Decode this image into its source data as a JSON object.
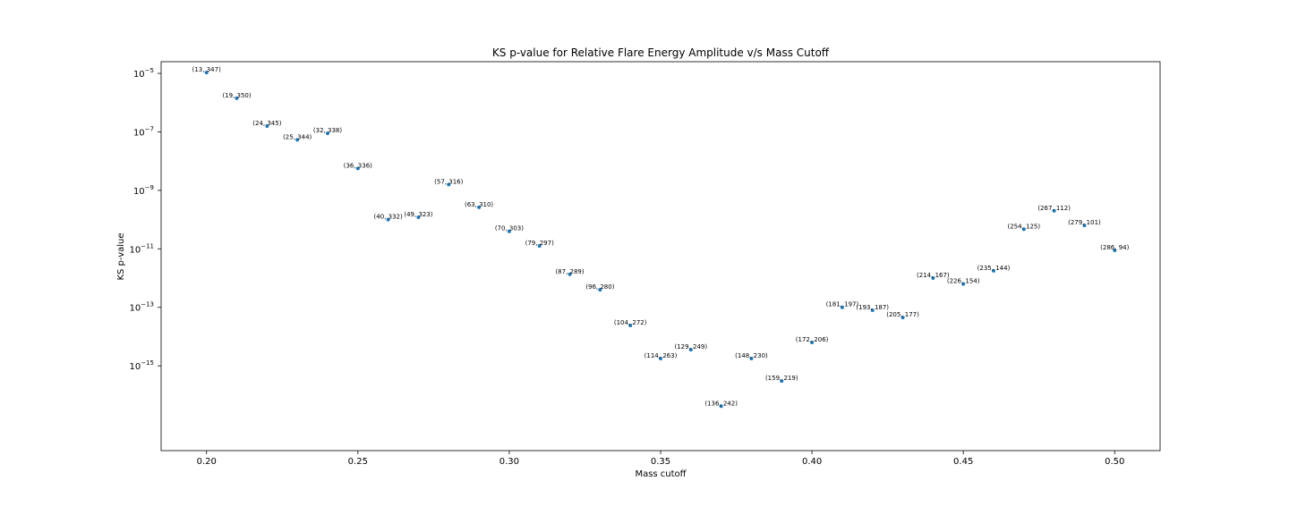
{
  "chart_data": {
    "type": "scatter",
    "title": "KS p-value for Relative Flare Energy Amplitude v/s Mass Cutoff",
    "xlabel": "Mass cutoff",
    "ylabel": "KS p-value",
    "y_scale": "log",
    "xlim": [
      0.185,
      0.515
    ],
    "ylim_log10": [
      -17.9,
      -4.6
    ],
    "grid": false,
    "color": "#1f77b4",
    "x_ticks": [
      "0.20",
      "0.25",
      "0.30",
      "0.35",
      "0.40",
      "0.45",
      "0.50"
    ],
    "y_ticks": [
      {
        "base": "10",
        "exp": "−5",
        "log10": -5
      },
      {
        "base": "10",
        "exp": "−7",
        "log10": -7
      },
      {
        "base": "10",
        "exp": "−9",
        "log10": -9
      },
      {
        "base": "10",
        "exp": "−11",
        "log10": -11
      },
      {
        "base": "10",
        "exp": "−13",
        "log10": -13
      },
      {
        "base": "10",
        "exp": "−15",
        "log10": -15
      }
    ],
    "points": [
      {
        "x": 0.2,
        "log10_y": -4.97,
        "label": "(13, 347)"
      },
      {
        "x": 0.21,
        "log10_y": -5.85,
        "label": "(19, 350)"
      },
      {
        "x": 0.22,
        "log10_y": -6.8,
        "label": "(24, 345)"
      },
      {
        "x": 0.23,
        "log10_y": -7.27,
        "label": "(25, 344)"
      },
      {
        "x": 0.24,
        "log10_y": -7.05,
        "label": "(32, 338)"
      },
      {
        "x": 0.25,
        "log10_y": -8.25,
        "label": "(36, 336)"
      },
      {
        "x": 0.26,
        "log10_y": -10.0,
        "label": "(40, 332)"
      },
      {
        "x": 0.27,
        "log10_y": -9.92,
        "label": "(49, 323)"
      },
      {
        "x": 0.28,
        "log10_y": -8.8,
        "label": "(57, 316)"
      },
      {
        "x": 0.29,
        "log10_y": -9.58,
        "label": "(63, 310)"
      },
      {
        "x": 0.3,
        "log10_y": -10.4,
        "label": "(70, 303)"
      },
      {
        "x": 0.31,
        "log10_y": -10.9,
        "label": "(79, 297)"
      },
      {
        "x": 0.32,
        "log10_y": -11.87,
        "label": "(87, 289)"
      },
      {
        "x": 0.33,
        "log10_y": -12.4,
        "label": "(96, 280)"
      },
      {
        "x": 0.34,
        "log10_y": -13.62,
        "label": "(104, 272)"
      },
      {
        "x": 0.35,
        "log10_y": -14.75,
        "label": "(114, 263)"
      },
      {
        "x": 0.36,
        "log10_y": -14.45,
        "label": "(129, 249)"
      },
      {
        "x": 0.37,
        "log10_y": -16.38,
        "label": "(136, 242)"
      },
      {
        "x": 0.38,
        "log10_y": -14.75,
        "label": "(148, 230)"
      },
      {
        "x": 0.39,
        "log10_y": -15.52,
        "label": "(159, 219)"
      },
      {
        "x": 0.4,
        "log10_y": -14.2,
        "label": "(172, 206)"
      },
      {
        "x": 0.41,
        "log10_y": -13.0,
        "label": "(181, 197)"
      },
      {
        "x": 0.42,
        "log10_y": -13.1,
        "label": "(193, 187)"
      },
      {
        "x": 0.43,
        "log10_y": -13.35,
        "label": "(205, 177)"
      },
      {
        "x": 0.44,
        "log10_y": -12.0,
        "label": "(214, 167)"
      },
      {
        "x": 0.45,
        "log10_y": -12.2,
        "label": "(226, 154)"
      },
      {
        "x": 0.46,
        "log10_y": -11.75,
        "label": "(235, 144)"
      },
      {
        "x": 0.47,
        "log10_y": -10.33,
        "label": "(254, 125)"
      },
      {
        "x": 0.48,
        "log10_y": -9.7,
        "label": "(267, 112)"
      },
      {
        "x": 0.49,
        "log10_y": -10.2,
        "label": "(279, 101)"
      },
      {
        "x": 0.5,
        "log10_y": -11.05,
        "label": "(286, 94)"
      }
    ]
  }
}
